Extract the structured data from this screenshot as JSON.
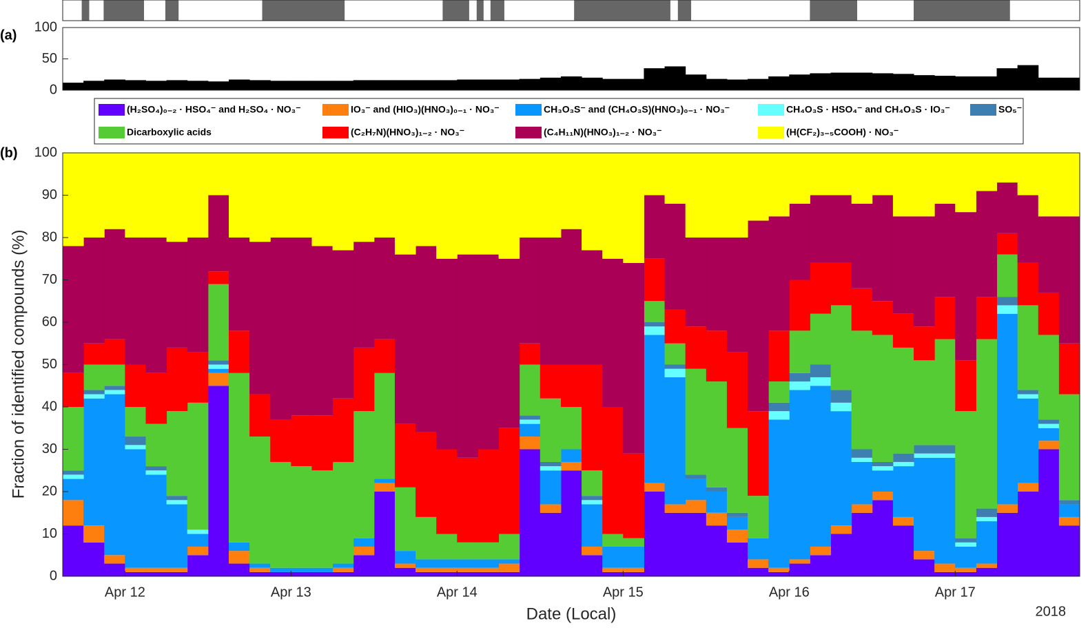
{
  "chart_data": [
    {
      "type": "timeline",
      "color": "#666666",
      "xlim": [
        "2018-04-11T15:00",
        "2018-04-17T18:00"
      ],
      "intervals": [
        [
          "2018-04-11T17:45",
          "2018-04-11T18:50"
        ],
        [
          "2018-04-11T20:55",
          "2018-04-12T02:45"
        ],
        [
          "2018-04-12T05:50",
          "2018-04-12T07:45"
        ],
        [
          "2018-04-12T19:50",
          "2018-04-13T07:45"
        ],
        [
          "2018-04-13T21:55",
          "2018-04-14T01:45"
        ],
        [
          "2018-04-14T02:50",
          "2018-04-14T03:50"
        ],
        [
          "2018-04-14T04:50",
          "2018-04-14T06:50"
        ],
        [
          "2018-04-14T16:55",
          "2018-04-15T06:50"
        ],
        [
          "2018-04-15T07:55",
          "2018-04-15T09:50"
        ],
        [
          "2018-04-16T03:00",
          "2018-04-16T09:50"
        ],
        [
          "2018-04-16T18:00",
          "2018-04-17T07:55"
        ]
      ]
    },
    {
      "type": "bar",
      "panel_label": "(a)",
      "color": "#000000",
      "xlim": [
        "2018-04-11T15:00",
        "2018-04-17T18:00"
      ],
      "x": [
        "2018-04-11T15:00",
        "2018-04-11T18:00",
        "2018-04-11T21:00",
        "2018-04-12T00:00",
        "2018-04-12T03:00",
        "2018-04-12T06:00",
        "2018-04-12T09:00",
        "2018-04-12T12:00",
        "2018-04-12T15:00",
        "2018-04-12T18:00",
        "2018-04-12T21:00",
        "2018-04-13T00:00",
        "2018-04-13T03:00",
        "2018-04-13T06:00",
        "2018-04-13T09:00",
        "2018-04-13T12:00",
        "2018-04-13T15:00",
        "2018-04-13T18:00",
        "2018-04-13T21:00",
        "2018-04-14T00:00",
        "2018-04-14T03:00",
        "2018-04-14T06:00",
        "2018-04-14T09:00",
        "2018-04-14T12:00",
        "2018-04-14T15:00",
        "2018-04-14T18:00",
        "2018-04-14T21:00",
        "2018-04-15T00:00",
        "2018-04-15T03:00",
        "2018-04-15T06:00",
        "2018-04-15T09:00",
        "2018-04-15T12:00",
        "2018-04-15T15:00",
        "2018-04-15T18:00",
        "2018-04-15T21:00",
        "2018-04-16T00:00",
        "2018-04-16T03:00",
        "2018-04-16T06:00",
        "2018-04-16T09:00",
        "2018-04-16T12:00",
        "2018-04-16T15:00",
        "2018-04-16T18:00",
        "2018-04-16T21:00",
        "2018-04-17T00:00",
        "2018-04-17T03:00",
        "2018-04-17T06:00",
        "2018-04-17T09:00",
        "2018-04-17T12:00",
        "2018-04-17T15:00"
      ],
      "values": [
        12,
        15,
        17,
        16,
        15,
        16,
        15,
        14,
        17,
        16,
        15,
        15,
        15,
        15,
        16,
        16,
        16,
        16,
        16,
        17,
        17,
        17,
        18,
        20,
        22,
        20,
        18,
        18,
        35,
        38,
        25,
        18,
        17,
        18,
        22,
        25,
        27,
        28,
        28,
        27,
        26,
        24,
        23,
        22,
        22,
        35,
        40,
        20,
        20
      ],
      "ylim": [
        0,
        100
      ],
      "yticks": [
        0,
        50,
        100
      ]
    },
    {
      "type": "stacked_bar",
      "panel_label": "(b)",
      "xlabel": "Date (Local)",
      "ylabel": "Fraction of identified compounds (%)",
      "year_label": "2018",
      "legend": "top",
      "xlim": [
        "2018-04-11T15:00",
        "2018-04-17T18:00"
      ],
      "xticks": [
        {
          "value": "2018-04-12T00:00",
          "label": "Apr 12"
        },
        {
          "value": "2018-04-13T00:00",
          "label": "Apr 13"
        },
        {
          "value": "2018-04-14T00:00",
          "label": "Apr 14"
        },
        {
          "value": "2018-04-15T00:00",
          "label": "Apr 15"
        },
        {
          "value": "2018-04-16T00:00",
          "label": "Apr 16"
        },
        {
          "value": "2018-04-17T00:00",
          "label": "Apr 17"
        }
      ],
      "ylim": [
        0,
        100
      ],
      "yticks": [
        0,
        10,
        20,
        30,
        40,
        50,
        60,
        70,
        80,
        90,
        100
      ],
      "x": [
        "2018-04-11T15:00",
        "2018-04-11T18:00",
        "2018-04-11T21:00",
        "2018-04-12T00:00",
        "2018-04-12T03:00",
        "2018-04-12T06:00",
        "2018-04-12T09:00",
        "2018-04-12T12:00",
        "2018-04-12T15:00",
        "2018-04-12T18:00",
        "2018-04-12T21:00",
        "2018-04-13T00:00",
        "2018-04-13T03:00",
        "2018-04-13T06:00",
        "2018-04-13T09:00",
        "2018-04-13T12:00",
        "2018-04-13T15:00",
        "2018-04-13T18:00",
        "2018-04-13T21:00",
        "2018-04-14T00:00",
        "2018-04-14T03:00",
        "2018-04-14T06:00",
        "2018-04-14T09:00",
        "2018-04-14T12:00",
        "2018-04-14T15:00",
        "2018-04-14T18:00",
        "2018-04-14T21:00",
        "2018-04-15T00:00",
        "2018-04-15T03:00",
        "2018-04-15T06:00",
        "2018-04-15T09:00",
        "2018-04-15T12:00",
        "2018-04-15T15:00",
        "2018-04-15T18:00",
        "2018-04-15T21:00",
        "2018-04-16T00:00",
        "2018-04-16T03:00",
        "2018-04-16T06:00",
        "2018-04-16T09:00",
        "2018-04-16T12:00",
        "2018-04-16T15:00",
        "2018-04-16T18:00",
        "2018-04-16T21:00",
        "2018-04-17T00:00",
        "2018-04-17T03:00",
        "2018-04-17T06:00",
        "2018-04-17T09:00",
        "2018-04-17T12:00",
        "2018-04-17T15:00"
      ],
      "series": [
        {
          "name": "(H₂SO₄)₀₋₂ · HSO₄⁻ and H₂SO₄ · NO₃⁻",
          "color": "#6100ff",
          "values": [
            12,
            8,
            3,
            1,
            1,
            1,
            5,
            45,
            3,
            1,
            1,
            1,
            1,
            1,
            5,
            20,
            2,
            1,
            1,
            1,
            1,
            1,
            30,
            15,
            25,
            5,
            1,
            1,
            20,
            15,
            15,
            12,
            8,
            2,
            1,
            3,
            5,
            10,
            15,
            18,
            12,
            4,
            1,
            1,
            2,
            15,
            20,
            30,
            12
          ]
        },
        {
          "name": "IO₃⁻ and (HIO₃)(HNO₃)₀₋₁ · NO₃⁻",
          "color": "#ff7f0e",
          "values": [
            6,
            4,
            2,
            1,
            1,
            1,
            2,
            3,
            3,
            1,
            0,
            0,
            0,
            1,
            2,
            2,
            1,
            1,
            1,
            1,
            1,
            2,
            3,
            2,
            2,
            2,
            1,
            1,
            2,
            2,
            3,
            3,
            3,
            2,
            1,
            1,
            2,
            2,
            2,
            2,
            2,
            2,
            2,
            1,
            1,
            2,
            2,
            2,
            2
          ]
        },
        {
          "name": "CH₃O₃S⁻ and (CH₄O₃S)(HNO₃)₀₋₁ · NO₃⁻",
          "color": "#0a96ff",
          "values": [
            5,
            30,
            38,
            28,
            22,
            15,
            3,
            1,
            2,
            1,
            1,
            1,
            1,
            1,
            2,
            1,
            3,
            2,
            2,
            2,
            2,
            1,
            3,
            8,
            3,
            10,
            5,
            5,
            35,
            30,
            5,
            5,
            3,
            5,
            35,
            40,
            38,
            27,
            10,
            5,
            12,
            22,
            25,
            5,
            10,
            45,
            20,
            3,
            3
          ]
        },
        {
          "name": "CH₄O₃S · HSO₄⁻ and CH₄O₃S · IO₃⁻",
          "color": "#66ffff",
          "values": [
            1,
            1,
            1,
            1,
            1,
            1,
            1,
            1,
            0,
            0,
            0,
            0,
            0,
            0,
            0,
            0,
            0,
            0,
            0,
            0,
            0,
            0,
            1,
            1,
            0,
            1,
            0,
            0,
            2,
            2,
            0,
            0,
            0,
            0,
            2,
            2,
            2,
            2,
            1,
            1,
            1,
            1,
            1,
            1,
            1,
            2,
            1,
            1,
            0
          ]
        },
        {
          "name": "SO₅⁻",
          "color": "#3d7fb0",
          "values": [
            1,
            1,
            1,
            2,
            1,
            1,
            0,
            1,
            0,
            0,
            0,
            0,
            0,
            0,
            0,
            0,
            0,
            0,
            0,
            0,
            0,
            0,
            1,
            1,
            0,
            1,
            0,
            0,
            1,
            1,
            1,
            1,
            1,
            0,
            2,
            2,
            3,
            3,
            2,
            1,
            2,
            2,
            2,
            1,
            2,
            2,
            1,
            1,
            1
          ]
        },
        {
          "name": "Dicarboxylic acids",
          "color": "#55cc33",
          "values": [
            15,
            6,
            5,
            7,
            10,
            20,
            30,
            18,
            40,
            30,
            25,
            24,
            23,
            24,
            30,
            25,
            15,
            10,
            6,
            4,
            4,
            6,
            12,
            15,
            10,
            6,
            3,
            2,
            5,
            5,
            25,
            25,
            20,
            10,
            5,
            10,
            12,
            20,
            28,
            30,
            25,
            20,
            25,
            30,
            40,
            10,
            20,
            20,
            25
          ]
        },
        {
          "name": "(C₂H₇N)(HNO₃)₁₋₂ · NO₃⁻",
          "color": "#ff0000",
          "values": [
            8,
            5,
            6,
            10,
            12,
            15,
            12,
            3,
            10,
            10,
            10,
            12,
            13,
            15,
            15,
            8,
            15,
            20,
            20,
            20,
            22,
            25,
            5,
            8,
            10,
            25,
            30,
            20,
            10,
            8,
            10,
            12,
            18,
            20,
            12,
            12,
            12,
            10,
            10,
            8,
            8,
            8,
            10,
            12,
            10,
            5,
            10,
            10,
            12
          ]
        },
        {
          "name": "(C₄H₁₁N)(HNO₃)₁₋₂ · NO₃⁻",
          "color": "#aa0055",
          "values": [
            30,
            25,
            26,
            30,
            32,
            25,
            27,
            18,
            22,
            36,
            43,
            42,
            40,
            35,
            25,
            24,
            40,
            44,
            45,
            48,
            46,
            40,
            25,
            30,
            32,
            27,
            35,
            45,
            15,
            25,
            21,
            22,
            27,
            45,
            27,
            18,
            16,
            16,
            20,
            25,
            23,
            26,
            22,
            35,
            25,
            12,
            16,
            18,
            30
          ]
        },
        {
          "name": "(H(CF₂)₃₋₅COOH) · NO₃⁻",
          "color": "#ffff00",
          "values": [
            22,
            20,
            18,
            20,
            20,
            21,
            20,
            10,
            20,
            21,
            20,
            20,
            22,
            23,
            21,
            20,
            24,
            22,
            25,
            24,
            24,
            25,
            20,
            20,
            18,
            23,
            25,
            26,
            10,
            12,
            20,
            20,
            20,
            16,
            15,
            12,
            10,
            10,
            12,
            10,
            15,
            15,
            12,
            14,
            9,
            7,
            10,
            15,
            15
          ]
        }
      ]
    }
  ]
}
